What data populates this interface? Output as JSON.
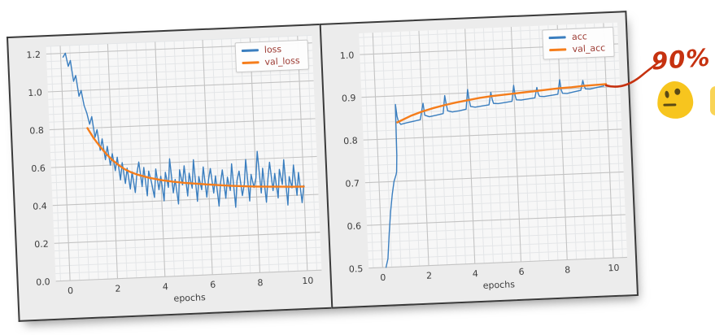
{
  "colors": {
    "figure_bg": "#ececec",
    "plot_bg": "#f7f7f7",
    "grid_major": "#c3c3c3",
    "grid_minor": "#e4e6e8",
    "border": "#3a3a3a",
    "tick_text": "#3c3c3c",
    "legend_text": "#9c3a32",
    "series_blue": "#3a7ebf",
    "series_orange": "#f57d1b",
    "hand_red": "#c63210",
    "emoji_yellow": "#f7c51e",
    "emoji_features": "#5a4a16"
  },
  "annotations": {
    "label": "90%",
    "emoji": "neutral-blob-face"
  },
  "chart_data": [
    {
      "name": "loss-chart",
      "type": "line",
      "title": "",
      "xlabel": "epochs",
      "ylabel": "",
      "xlim": [
        -0.6,
        10.6
      ],
      "ylim": [
        0,
        1.24
      ],
      "xticks": [
        0,
        2,
        4,
        6,
        8,
        10
      ],
      "xtick_labels": [
        "0",
        "2",
        "4",
        "6",
        "8",
        "10"
      ],
      "yticks": [
        0,
        0.2,
        0.4,
        0.6,
        0.8,
        1.0,
        1.2
      ],
      "ytick_labels": [
        "0.0",
        "0.2",
        "0.4",
        "0.6",
        "0.8",
        "1.0",
        "1.2"
      ],
      "minor_x": 0.4,
      "minor_y": 0.04,
      "grid": true,
      "legend_position": "upper right",
      "series": [
        {
          "name": "loss",
          "color": "#3a7ebf",
          "width": 1.4,
          "x_start": 0.1,
          "x_step": 0.1,
          "y": [
            1.18,
            1.2,
            1.13,
            1.16,
            1.05,
            1.08,
            0.97,
            1.0,
            0.92,
            0.88,
            0.82,
            0.86,
            0.75,
            0.79,
            0.68,
            0.74,
            0.63,
            0.7,
            0.6,
            0.66,
            0.57,
            0.64,
            0.52,
            0.61,
            0.5,
            0.58,
            0.47,
            0.56,
            0.45,
            0.55,
            0.61,
            0.48,
            0.58,
            0.43,
            0.56,
            0.5,
            0.42,
            0.57,
            0.46,
            0.53,
            0.4,
            0.55,
            0.47,
            0.62,
            0.44,
            0.51,
            0.38,
            0.56,
            0.48,
            0.58,
            0.42,
            0.54,
            0.46,
            0.61,
            0.39,
            0.52,
            0.45,
            0.57,
            0.41,
            0.5,
            0.56,
            0.43,
            0.52,
            0.36,
            0.48,
            0.55,
            0.4,
            0.51,
            0.44,
            0.58,
            0.35,
            0.49,
            0.54,
            0.41,
            0.47,
            0.6,
            0.38,
            0.52,
            0.45,
            0.5,
            0.64,
            0.42,
            0.55,
            0.37,
            0.49,
            0.58,
            0.43,
            0.52,
            0.39,
            0.54,
            0.46,
            0.59,
            0.35,
            0.5,
            0.44,
            0.56,
            0.4,
            0.52,
            0.36,
            0.45
          ]
        },
        {
          "name": "val_loss",
          "color": "#f57d1b",
          "width": 2.4,
          "points": [
            [
              1.0,
              0.8
            ],
            [
              1.25,
              0.745
            ],
            [
              1.5,
              0.7
            ],
            [
              1.75,
              0.66
            ],
            [
              2.0,
              0.625
            ],
            [
              2.25,
              0.598
            ],
            [
              2.5,
              0.575
            ],
            [
              2.75,
              0.558
            ],
            [
              3.0,
              0.545
            ],
            [
              3.5,
              0.525
            ],
            [
              4.0,
              0.51
            ],
            [
              4.5,
              0.499
            ],
            [
              5.0,
              0.49
            ],
            [
              5.5,
              0.483
            ],
            [
              6.0,
              0.476
            ],
            [
              6.5,
              0.47
            ],
            [
              7.0,
              0.464
            ],
            [
              7.5,
              0.459
            ],
            [
              8.0,
              0.455
            ],
            [
              8.5,
              0.452
            ],
            [
              9.0,
              0.449
            ],
            [
              9.5,
              0.446
            ],
            [
              10.0,
              0.444
            ]
          ]
        }
      ]
    },
    {
      "name": "accuracy-chart",
      "type": "line",
      "title": "",
      "xlabel": "epochs",
      "ylabel": "",
      "xlim": [
        -0.6,
        10.6
      ],
      "ylim": [
        0.5,
        1.05
      ],
      "xticks": [
        0,
        2,
        4,
        6,
        8,
        10
      ],
      "xtick_labels": [
        "0",
        "2",
        "4",
        "6",
        "8",
        "10"
      ],
      "yticks": [
        0.5,
        0.6,
        0.7,
        0.8,
        0.9,
        1.0
      ],
      "ytick_labels": [
        "0.5",
        "0.6",
        "0.7",
        "0.8",
        "0.9",
        "1.0"
      ],
      "minor_x": 0.4,
      "minor_y": 0.02,
      "grid": true,
      "legend_position": "upper right",
      "series": [
        {
          "name": "acc",
          "color": "#3a7ebf",
          "width": 1.4,
          "points": [
            [
              0.15,
              0.5
            ],
            [
              0.25,
              0.52
            ],
            [
              0.35,
              0.58
            ],
            [
              0.45,
              0.63
            ],
            [
              0.55,
              0.67
            ],
            [
              0.65,
              0.7
            ],
            [
              0.75,
              0.715
            ],
            [
              0.78,
              0.722
            ],
            [
              0.82,
              0.76
            ],
            [
              0.85,
              0.88
            ],
            [
              0.9,
              0.852
            ],
            [
              0.95,
              0.84
            ],
            [
              1.05,
              0.833
            ],
            [
              1.3,
              0.836
            ],
            [
              1.6,
              0.839
            ],
            [
              1.9,
              0.842
            ],
            [
              2.0,
              0.868
            ],
            [
              2.05,
              0.88
            ],
            [
              2.1,
              0.852
            ],
            [
              2.3,
              0.848
            ],
            [
              2.6,
              0.851
            ],
            [
              2.9,
              0.854
            ],
            [
              3.0,
              0.896
            ],
            [
              3.05,
              0.876
            ],
            [
              3.1,
              0.86
            ],
            [
              3.3,
              0.857
            ],
            [
              3.6,
              0.859
            ],
            [
              3.9,
              0.862
            ],
            [
              4.0,
              0.908
            ],
            [
              4.05,
              0.884
            ],
            [
              4.1,
              0.868
            ],
            [
              4.3,
              0.866
            ],
            [
              4.6,
              0.868
            ],
            [
              4.9,
              0.87
            ],
            [
              5.0,
              0.899
            ],
            [
              5.05,
              0.882
            ],
            [
              5.1,
              0.873
            ],
            [
              5.3,
              0.872
            ],
            [
              5.6,
              0.874
            ],
            [
              5.9,
              0.876
            ],
            [
              6.0,
              0.913
            ],
            [
              6.05,
              0.888
            ],
            [
              6.1,
              0.879
            ],
            [
              6.3,
              0.878
            ],
            [
              6.6,
              0.88
            ],
            [
              6.9,
              0.882
            ],
            [
              7.0,
              0.906
            ],
            [
              7.05,
              0.891
            ],
            [
              7.1,
              0.885
            ],
            [
              7.3,
              0.884
            ],
            [
              7.6,
              0.886
            ],
            [
              7.9,
              0.888
            ],
            [
              8.0,
              0.922
            ],
            [
              8.05,
              0.898
            ],
            [
              8.1,
              0.89
            ],
            [
              8.3,
              0.889
            ],
            [
              8.6,
              0.892
            ],
            [
              8.9,
              0.895
            ],
            [
              9.0,
              0.918
            ],
            [
              9.05,
              0.905
            ],
            [
              9.1,
              0.898
            ],
            [
              9.3,
              0.897
            ],
            [
              9.6,
              0.9
            ],
            [
              9.9,
              0.903
            ]
          ]
        },
        {
          "name": "val_acc",
          "color": "#f57d1b",
          "width": 2.4,
          "points": [
            [
              0.9,
              0.838
            ],
            [
              1.5,
              0.852
            ],
            [
              2.0,
              0.861
            ],
            [
              2.5,
              0.868
            ],
            [
              3.0,
              0.874
            ],
            [
              3.5,
              0.879
            ],
            [
              4.0,
              0.883
            ],
            [
              4.5,
              0.887
            ],
            [
              5.0,
              0.89
            ],
            [
              5.5,
              0.892
            ],
            [
              6.0,
              0.894
            ],
            [
              6.5,
              0.896
            ],
            [
              7.0,
              0.898
            ],
            [
              7.5,
              0.9
            ],
            [
              8.0,
              0.902
            ],
            [
              8.5,
              0.903
            ],
            [
              9.0,
              0.905
            ],
            [
              9.5,
              0.906
            ],
            [
              10.0,
              0.907
            ]
          ]
        }
      ]
    }
  ]
}
